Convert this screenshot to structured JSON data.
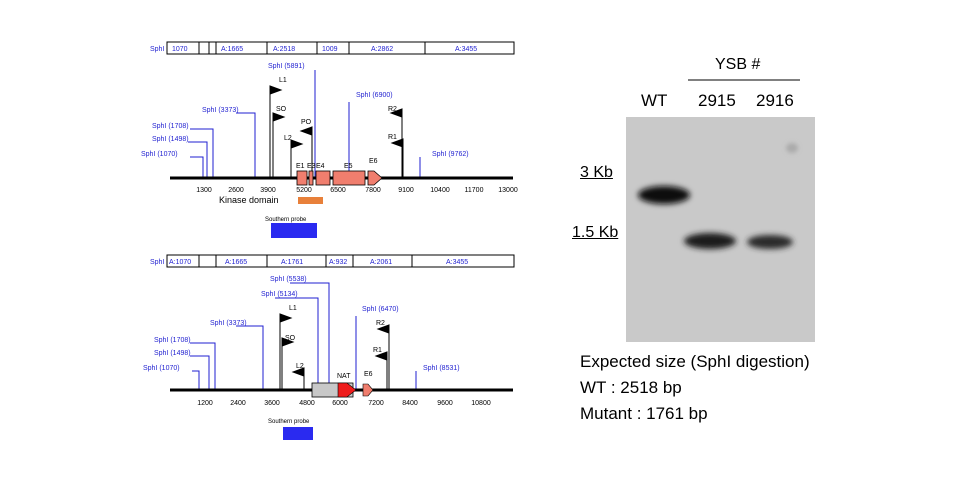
{
  "colors": {
    "exon": "#f07e6e",
    "kinase": "#e8803a",
    "probe": "#2a2af0",
    "label_blue": "#1f1fd0",
    "nat_box": "#c8c8c8",
    "nat_arrow": "#ee1c1c",
    "gel_bg": "#c9c9c9"
  },
  "wt_map": {
    "restriction_bar": [
      "SphI",
      "1070",
      "A:1665",
      "A:2518",
      "1009",
      "A:2862",
      "A:3455"
    ],
    "sites": [
      "SphI (1070)",
      "SphI (1498)",
      "SphI (1708)",
      "SphI (3373)",
      "SphI (5891)",
      "SphI (6900)",
      "SphI (9762)"
    ],
    "primers": [
      "L1",
      "SO",
      "L2",
      "PO",
      "R2",
      "R1"
    ],
    "exons": [
      "E1",
      "E3",
      "E4",
      "E5",
      "E6"
    ],
    "axis_ticks": [
      "1300",
      "2600",
      "3900",
      "5200",
      "6500",
      "7800",
      "9100",
      "10400",
      "11700",
      "13000"
    ],
    "kinase_label": "Kinase domain",
    "probe_label": "Southern probe"
  },
  "mut_map": {
    "restriction_bar": [
      "SphI",
      "A:1070",
      "A:1665",
      "A:1761",
      "A:932",
      "A:2061",
      "A:3455"
    ],
    "sites": [
      "SphI (1070)",
      "SphI (1498)",
      "SphI (1708)",
      "SphI (3373)",
      "SphI (5134)",
      "SphI (5538)",
      "SphI (6470)",
      "SphI (8531)"
    ],
    "primers": [
      "L1",
      "SO",
      "L2",
      "R2",
      "R1"
    ],
    "nat_label": "NAT",
    "exon_label": "E6",
    "axis_ticks": [
      "1200",
      "2400",
      "3600",
      "4800",
      "6000",
      "7200",
      "8400",
      "9600",
      "10800"
    ],
    "probe_label": "Southern probe"
  },
  "gel": {
    "group_label": "YSB #",
    "lanes": [
      "WT",
      "2915",
      "2916"
    ],
    "markers": [
      "3 Kb",
      "1.5 Kb"
    ]
  },
  "expected": {
    "title": "Expected size (SphI digestion)",
    "wt": "WT : 2518 bp",
    "mutant": "Mutant : 1761 bp"
  }
}
